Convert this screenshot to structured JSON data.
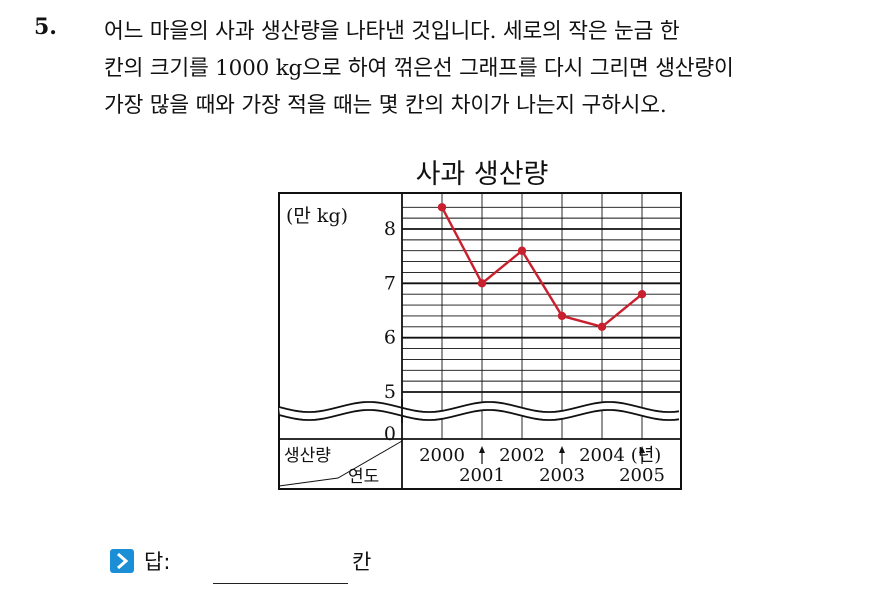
{
  "question": {
    "number": "5.",
    "lines": [
      "어느 마을의 사과 생산량을 나타낸 것입니다. 세로의 작은 눈금 한",
      "칸의 크기를 1000 kg으로 하여 꺾은선 그래프를 다시 그리면 생산량이",
      "가장 많을 때와 가장 적을 때는 몇 칸의 차이가 나는지 구하시오."
    ]
  },
  "chart_data": {
    "type": "line",
    "title": "사과 생산량",
    "ylabel": "(만 kg)",
    "y_ticks": [
      "0",
      "5",
      "6",
      "7",
      "8"
    ],
    "ylim": [
      5,
      8.4
    ],
    "y_break": true,
    "x_top_labels": [
      "2000",
      "2002",
      "2004",
      "(년)"
    ],
    "x_bottom_labels": [
      "2001",
      "2003",
      "2005"
    ],
    "corner_top": "생산량",
    "corner_bottom": "연도",
    "grid": true,
    "series": [
      {
        "color": "#c8202e",
        "x": [
          "2000",
          "2001",
          "2002",
          "2003",
          "2004",
          "2005"
        ],
        "values": [
          8.4,
          7.0,
          7.6,
          6.4,
          6.2,
          6.8
        ]
      }
    ]
  },
  "answer": {
    "label": "답:",
    "unit": "칸",
    "icon": "arrow-right-icon",
    "icon_color": "#1a8fd6"
  }
}
